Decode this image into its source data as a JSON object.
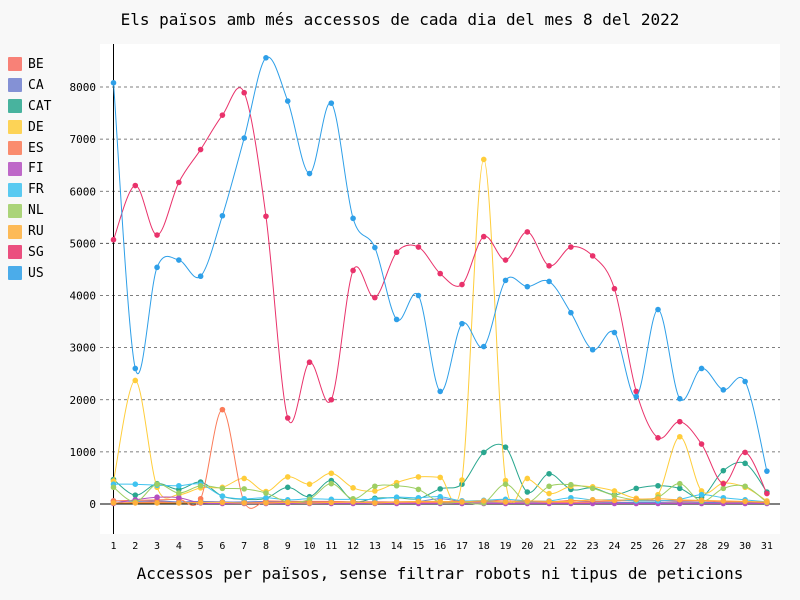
{
  "chart_data": {
    "type": "line",
    "title": "Els països amb més accessos de cada dia del mes 8 del 2022",
    "xlabel": "Accessos per països, sense filtrar robots ni tipus de peticions",
    "ylabel": "",
    "x": [
      1,
      2,
      3,
      4,
      5,
      6,
      7,
      8,
      9,
      10,
      11,
      12,
      13,
      14,
      15,
      16,
      17,
      18,
      19,
      20,
      21,
      22,
      23,
      24,
      25,
      26,
      27,
      28,
      29,
      30,
      31
    ],
    "ylim": [
      -400,
      8700
    ],
    "yticks": [
      0,
      1000,
      2000,
      3000,
      4000,
      5000,
      6000,
      7000,
      8000
    ],
    "grid": true,
    "legend_position": "left",
    "series": [
      {
        "name": "BE",
        "color": "#f96d61",
        "values": [
          20,
          30,
          40,
          30,
          40,
          40,
          30,
          40,
          30,
          30,
          30,
          30,
          30,
          30,
          30,
          30,
          30,
          30,
          30,
          30,
          30,
          30,
          30,
          30,
          30,
          30,
          30,
          30,
          30,
          30,
          30
        ]
      },
      {
        "name": "CA",
        "color": "#7080cf",
        "values": [
          60,
          50,
          60,
          40,
          50,
          40,
          40,
          50,
          40,
          40,
          50,
          40,
          40,
          40,
          50,
          100,
          50,
          40,
          40,
          40,
          40,
          60,
          40,
          30,
          30,
          30,
          40,
          30,
          30,
          30,
          20
        ]
      },
      {
        "name": "CAT",
        "color": "#2aa78f",
        "values": [
          470,
          170,
          390,
          280,
          420,
          150,
          90,
          110,
          320,
          140,
          450,
          60,
          110,
          120,
          100,
          290,
          380,
          990,
          1090,
          230,
          580,
          280,
          310,
          180,
          300,
          350,
          300,
          130,
          640,
          780,
          230
        ]
      },
      {
        "name": "DE",
        "color": "#ffcd3a",
        "values": [
          440,
          2370,
          320,
          180,
          310,
          320,
          490,
          240,
          520,
          380,
          590,
          310,
          250,
          410,
          520,
          510,
          460,
          6610,
          450,
          490,
          200,
          340,
          330,
          250,
          110,
          180,
          1290,
          250,
          400,
          320,
          60
        ]
      },
      {
        "name": "ES",
        "color": "#fb7a57",
        "values": [
          60,
          70,
          80,
          90,
          100,
          1810,
          40,
          60,
          50,
          50,
          50,
          40,
          40,
          40,
          40,
          40,
          60,
          50,
          80,
          60,
          40,
          70,
          50,
          60,
          70,
          70,
          60,
          60,
          40,
          40,
          20
        ]
      },
      {
        "name": "FI",
        "color": "#b44fc0",
        "values": [
          10,
          80,
          130,
          120,
          20,
          10,
          10,
          10,
          10,
          10,
          10,
          10,
          10,
          10,
          10,
          10,
          10,
          10,
          10,
          10,
          10,
          10,
          10,
          10,
          10,
          10,
          10,
          10,
          10,
          10,
          10
        ]
      },
      {
        "name": "FR",
        "color": "#3fc3f0",
        "values": [
          380,
          380,
          360,
          350,
          380,
          150,
          100,
          120,
          80,
          100,
          90,
          90,
          90,
          130,
          120,
          140,
          60,
          70,
          90,
          60,
          60,
          120,
          80,
          80,
          60,
          60,
          90,
          180,
          120,
          80,
          40
        ]
      },
      {
        "name": "NL",
        "color": "#9ece63",
        "values": [
          320,
          40,
          380,
          210,
          350,
          300,
          290,
          210,
          40,
          90,
          390,
          100,
          340,
          350,
          280,
          30,
          40,
          20,
          380,
          40,
          340,
          370,
          300,
          160,
          80,
          130,
          390,
          50,
          300,
          340,
          30
        ]
      },
      {
        "name": "RU",
        "color": "#ffb03b",
        "values": [
          20,
          20,
          20,
          20,
          30,
          30,
          20,
          20,
          30,
          20,
          30,
          40,
          20,
          40,
          50,
          50,
          40,
          60,
          40,
          60,
          50,
          50,
          80,
          70,
          90,
          100,
          80,
          70,
          60,
          50,
          40
        ]
      },
      {
        "name": "SG",
        "color": "#e9326b",
        "values": [
          5070,
          6110,
          5160,
          6170,
          6800,
          7460,
          7890,
          5520,
          1650,
          2720,
          2000,
          4480,
          3960,
          4830,
          4930,
          4420,
          4210,
          5130,
          4680,
          5220,
          4570,
          4930,
          4760,
          4130,
          2160,
          1270,
          1580,
          1150,
          390,
          990,
          200
        ]
      },
      {
        "name": "US",
        "color": "#2e9fe8",
        "values": [
          8080,
          2600,
          4540,
          4680,
          4370,
          5530,
          7020,
          8560,
          7730,
          6340,
          7690,
          5480,
          4920,
          3540,
          4000,
          2160,
          3460,
          3020,
          4290,
          4170,
          4270,
          3670,
          2960,
          3290,
          2060,
          3730,
          2020,
          2600,
          2190,
          2350,
          630
        ]
      }
    ]
  }
}
